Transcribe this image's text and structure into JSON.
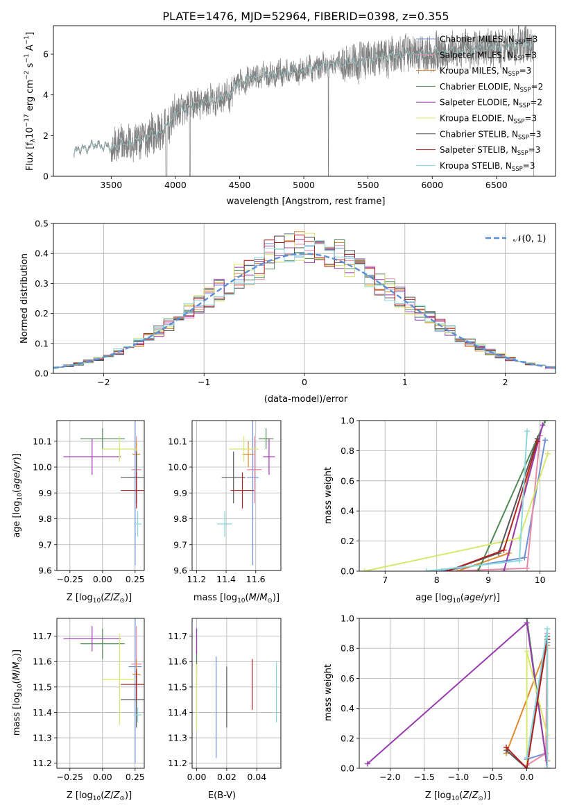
{
  "figure": {
    "title": "PLATE=1476, MJD=52964, FIBERID=0398, z=0.355"
  },
  "series": [
    {
      "name": "Chabrier MILES, N$_{SSP}$=3",
      "label": "Chabrier MILES, N",
      "sub": "SSP",
      "post": "=3",
      "color": "#6f8fd8"
    },
    {
      "name": "Salpeter MILES, N$_{SSP}$=3",
      "label": "Salpeter MILES, N",
      "sub": "SSP",
      "post": "=3",
      "color": "#e88aa8"
    },
    {
      "name": "Kroupa MILES, N$_{SSP}$=3",
      "label": "Kroupa MILES, N",
      "sub": "SSP",
      "post": "=3",
      "color": "#e08a2e"
    },
    {
      "name": "Chabrier ELODIE, N$_{SSP}$=2",
      "label": "Chabrier ELODIE, N",
      "sub": "SSP",
      "post": "=2",
      "color": "#4f8a55"
    },
    {
      "name": "Salpeter ELODIE, N$_{SSP}$=2",
      "label": "Salpeter ELODIE, N",
      "sub": "SSP",
      "post": "=2",
      "color": "#9a3ab0"
    },
    {
      "name": "Kroupa ELODIE, N$_{SSP}$=3",
      "label": "Kroupa ELODIE, N",
      "sub": "SSP",
      "post": "=3",
      "color": "#d7e86a"
    },
    {
      "name": "Chabrier STELIB, N$_{SSP}$=3",
      "label": "Chabrier STELIB, N",
      "sub": "SSP",
      "post": "=3",
      "color": "#555555"
    },
    {
      "name": "Salpeter STELIB, N$_{SSP}$=3",
      "label": "Salpeter STELIB, N",
      "sub": "SSP",
      "post": "=3",
      "color": "#b22222"
    },
    {
      "name": "Kroupa STELIB, N$_{SSP}$=3",
      "label": "Kroupa STELIB, N",
      "sub": "SSP",
      "post": "=3",
      "color": "#8ad8dc"
    }
  ],
  "chart_data": [
    {
      "id": "spectrum",
      "type": "line",
      "xlabel": "wavelength [Angstrom, rest frame]",
      "ylabel": "Flux [f_λ 10^-17 erg cm^-2 s^-1 A^-1]",
      "ylabel_parts": {
        "a": "Flux [f",
        "b": "λ",
        "c": "10",
        "d": "−17",
        "e": " erg cm",
        "f": "−2",
        "g": " s",
        "h": "−1",
        "i": " A",
        "j": "−1",
        "k": "]"
      },
      "xlim": [
        3050,
        6960
      ],
      "ylim": [
        0,
        7.4
      ],
      "xticks": [
        3500,
        4000,
        4500,
        5000,
        5500,
        6000,
        6500
      ],
      "yticks": [
        0,
        2,
        4,
        6
      ],
      "data_x_range": [
        3210,
        6800
      ],
      "data_color": "#808080",
      "model_anchors": {
        "x": [
          3210,
          3300,
          3400,
          3500,
          3600,
          3700,
          3800,
          3900,
          3950,
          4000,
          4100,
          4200,
          4300,
          4400,
          4500,
          4600,
          4800,
          5000,
          5200,
          5400,
          5600,
          5800,
          6000,
          6200,
          6400,
          6600,
          6800
        ],
        "y": [
          1.2,
          1.4,
          1.55,
          1.4,
          1.6,
          1.7,
          2.0,
          2.2,
          2.6,
          3.1,
          3.4,
          3.6,
          3.7,
          3.95,
          4.6,
          4.85,
          5.1,
          5.2,
          5.5,
          5.6,
          5.85,
          6.0,
          6.05,
          6.15,
          6.3,
          6.4,
          6.5
        ]
      }
    },
    {
      "id": "residuals",
      "type": "histogram",
      "xlabel": "(data-model)/error",
      "ylabel": "Normed distribution",
      "xlim": [
        -2.5,
        2.5
      ],
      "ylim": [
        0,
        0.5
      ],
      "xticks": [
        -2,
        -1,
        0,
        1,
        2
      ],
      "xtick_labels": [
        "−2",
        "−1",
        "0",
        "1",
        "2"
      ],
      "yticks": [
        0.0,
        0.1,
        0.2,
        0.3,
        0.4,
        0.5
      ],
      "ytick_labels": [
        "0.0",
        "0.1",
        "0.2",
        "0.3",
        "0.4",
        "0.5"
      ],
      "bins": 50,
      "reference_curve": {
        "name": "N(0,1)",
        "label": "𝒩(0, 1)",
        "color": "#5b8fd6"
      }
    },
    {
      "id": "age_vs_z",
      "type": "scatter",
      "xlabel": "Z [log10(Z/Z_sun)]",
      "ylabel": "age [log10(age/yr)]",
      "xlim": [
        -0.35,
        0.32
      ],
      "ylim": [
        9.6,
        10.18
      ],
      "xticks": [
        -0.25,
        0.0,
        0.25
      ],
      "xtick_labels": [
        "−0.25",
        "0.00",
        "0.25"
      ],
      "yticks": [
        9.6,
        9.7,
        9.8,
        9.9,
        10.0,
        10.1
      ],
      "ytick_labels": [
        "9.6",
        "9.7",
        "9.8",
        "9.9",
        "10.0",
        "10.1"
      ],
      "points": [
        {
          "s": 0,
          "x": 0.25,
          "y": 9.96,
          "xe": 0.05,
          "ye": 0.34
        },
        {
          "s": 1,
          "x": 0.26,
          "y": 9.99,
          "xe": 0.04,
          "ye": 0.13
        },
        {
          "s": 2,
          "x": 0.26,
          "y": 10.05,
          "xe": 0.03,
          "ye": 0.05
        },
        {
          "s": 3,
          "x": 0.0,
          "y": 10.11,
          "xe": 0.17,
          "ye": 0.04
        },
        {
          "s": 4,
          "x": -0.08,
          "y": 10.04,
          "xe": 0.22,
          "ye": 0.07
        },
        {
          "s": 5,
          "x": 0.13,
          "y": 10.07,
          "xe": 0.13,
          "ye": 0.05
        },
        {
          "s": 6,
          "x": 0.26,
          "y": 9.96,
          "xe": 0.12,
          "ye": 0.1
        },
        {
          "s": 7,
          "x": 0.26,
          "y": 9.91,
          "xe": 0.12,
          "ye": 0.07
        },
        {
          "s": 8,
          "x": 0.27,
          "y": 9.78,
          "xe": 0.03,
          "ye": 0.05
        }
      ]
    },
    {
      "id": "age_vs_mass",
      "type": "scatter",
      "xlabel": "mass [log10(M/M_sun)]",
      "ylabel": "",
      "xlim": [
        11.17,
        11.77
      ],
      "ylim": [
        9.6,
        10.18
      ],
      "xticks": [
        11.2,
        11.4,
        11.6
      ],
      "xtick_labels": [
        "11.2",
        "11.4",
        "11.6"
      ],
      "yticks": [
        9.6,
        9.7,
        9.8,
        9.9,
        10.0,
        10.1
      ],
      "ytick_labels": [
        "9.6",
        "9.7",
        "9.8",
        "9.9",
        "10.0",
        "10.1"
      ],
      "points": [
        {
          "s": 0,
          "x": 11.58,
          "y": 9.96,
          "xe": 0.04,
          "ye": 0.34
        },
        {
          "s": 1,
          "x": 11.59,
          "y": 9.99,
          "xe": 0.05,
          "ye": 0.13
        },
        {
          "s": 2,
          "x": 11.55,
          "y": 10.05,
          "xe": 0.04,
          "ye": 0.05
        },
        {
          "s": 3,
          "x": 11.67,
          "y": 10.11,
          "xe": 0.05,
          "ye": 0.04
        },
        {
          "s": 4,
          "x": 11.69,
          "y": 10.04,
          "xe": 0.04,
          "ye": 0.07
        },
        {
          "s": 5,
          "x": 11.52,
          "y": 10.07,
          "xe": 0.1,
          "ye": 0.05
        },
        {
          "s": 6,
          "x": 11.45,
          "y": 9.96,
          "xe": 0.08,
          "ye": 0.1
        },
        {
          "s": 7,
          "x": 11.51,
          "y": 9.91,
          "xe": 0.08,
          "ye": 0.07
        },
        {
          "s": 8,
          "x": 11.39,
          "y": 9.78,
          "xe": 0.05,
          "ye": 0.05
        }
      ]
    },
    {
      "id": "weight_vs_age",
      "type": "line",
      "xlabel": "age [log10(age/yr)]",
      "ylabel": "mass weight",
      "xlim": [
        6.5,
        10.3
      ],
      "ylim": [
        0,
        1
      ],
      "xticks": [
        7,
        8,
        9,
        10
      ],
      "xtick_labels": [
        "7",
        "8",
        "9",
        "10"
      ],
      "yticks": [
        0.0,
        0.2,
        0.4,
        0.6,
        0.8,
        1.0
      ],
      "ytick_labels": [
        "0.0",
        "0.2",
        "0.4",
        "0.6",
        "0.8",
        "1.0"
      ],
      "lines": [
        {
          "s": 0,
          "x": [
            8.1,
            9.7,
            10.1
          ],
          "y": [
            0.0,
            0.09,
            0.87
          ]
        },
        {
          "s": 1,
          "x": [
            8.3,
            9.75,
            10.0
          ],
          "y": [
            0.0,
            0.02,
            0.9
          ]
        },
        {
          "s": 2,
          "x": [
            8.4,
            9.4,
            9.95
          ],
          "y": [
            0.0,
            0.12,
            0.88
          ]
        },
        {
          "s": 3,
          "x": [
            8.8,
            10.1
          ],
          "y": [
            0.0,
            1.0
          ]
        },
        {
          "s": 4,
          "x": [
            9.3,
            10.05
          ],
          "y": [
            0.0,
            0.97
          ]
        },
        {
          "s": 5,
          "x": [
            6.6,
            9.6,
            10.15
          ],
          "y": [
            0.0,
            0.22,
            0.78
          ]
        },
        {
          "s": 6,
          "x": [
            8.2,
            9.2,
            9.95
          ],
          "y": [
            0.0,
            0.12,
            0.88
          ]
        },
        {
          "s": 7,
          "x": [
            8.2,
            9.3,
            9.95
          ],
          "y": [
            0.0,
            0.14,
            0.86
          ]
        },
        {
          "s": 8,
          "x": [
            7.8,
            9.6,
            9.75
          ],
          "y": [
            0.0,
            0.07,
            0.93
          ]
        }
      ]
    },
    {
      "id": "mass_vs_z",
      "type": "scatter",
      "xlabel": "Z [log10(Z/Z_sun)]",
      "ylabel": "mass [log10(M/M_sun)]",
      "xlim": [
        -0.35,
        0.32
      ],
      "ylim": [
        11.18,
        11.77
      ],
      "xticks": [
        -0.25,
        0.0,
        0.25
      ],
      "xtick_labels": [
        "−0.25",
        "0.00",
        "0.25"
      ],
      "yticks": [
        11.2,
        11.3,
        11.4,
        11.5,
        11.6,
        11.7
      ],
      "ytick_labels": [
        "11.2",
        "11.3",
        "11.4",
        "11.5",
        "11.6",
        "11.7"
      ],
      "points": [
        {
          "s": 0,
          "x": 0.25,
          "y": 11.58,
          "xe": 0.05,
          "ye": 0.38
        },
        {
          "s": 1,
          "x": 0.26,
          "y": 11.59,
          "xe": 0.04,
          "ye": 0.15
        },
        {
          "s": 2,
          "x": 0.26,
          "y": 11.55,
          "xe": 0.03,
          "ye": 0.06
        },
        {
          "s": 3,
          "x": 0.0,
          "y": 11.67,
          "xe": 0.17,
          "ye": 0.06
        },
        {
          "s": 4,
          "x": -0.08,
          "y": 11.69,
          "xe": 0.22,
          "ye": 0.05
        },
        {
          "s": 5,
          "x": 0.13,
          "y": 11.53,
          "xe": 0.13,
          "ye": 0.18
        },
        {
          "s": 6,
          "x": 0.26,
          "y": 11.45,
          "xe": 0.12,
          "ye": 0.11
        },
        {
          "s": 7,
          "x": 0.26,
          "y": 11.51,
          "xe": 0.12,
          "ye": 0.06
        },
        {
          "s": 8,
          "x": 0.27,
          "y": 11.39,
          "xe": 0.03,
          "ye": 0.03
        }
      ]
    },
    {
      "id": "mass_vs_ebv",
      "type": "scatter",
      "xlabel": "E(B-V)",
      "ylabel": "",
      "xlim": [
        -0.003,
        0.056
      ],
      "ylim": [
        11.18,
        11.77
      ],
      "xticks": [
        0.0,
        0.02,
        0.04
      ],
      "xtick_labels": [
        "0.00",
        "0.02",
        "0.04"
      ],
      "yticks": [
        11.2,
        11.3,
        11.4,
        11.5,
        11.6,
        11.7
      ],
      "ytick_labels": [
        "11.2",
        "11.3",
        "11.4",
        "11.5",
        "11.6",
        "11.7"
      ],
      "points": [
        {
          "s": 0,
          "x": 0.013,
          "y": 11.42,
          "xe": 0,
          "ye": 0.2
        },
        {
          "s": 1,
          "x": 0.0,
          "y": 11.6,
          "xe": 0,
          "ye": 0.05
        },
        {
          "s": 2,
          "x": 0.0,
          "y": 11.55,
          "xe": 0,
          "ye": 0.05
        },
        {
          "s": 3,
          "x": 0.0,
          "y": 11.66,
          "xe": 0,
          "ye": 0.07
        },
        {
          "s": 4,
          "x": 0.0,
          "y": 11.68,
          "xe": 0,
          "ye": 0.05
        },
        {
          "s": 5,
          "x": 0.0,
          "y": 11.46,
          "xe": 0,
          "ye": 0.13
        },
        {
          "s": 6,
          "x": 0.02,
          "y": 11.46,
          "xe": 0,
          "ye": 0.12
        },
        {
          "s": 7,
          "x": 0.037,
          "y": 11.51,
          "xe": 0,
          "ye": 0.1
        },
        {
          "s": 8,
          "x": 0.053,
          "y": 11.48,
          "xe": 0,
          "ye": 0.12
        }
      ]
    },
    {
      "id": "weight_vs_z",
      "type": "line",
      "xlabel": "Z [log10(Z/Z_sun)]",
      "ylabel": "mass weight",
      "xlim": [
        -2.45,
        0.42
      ],
      "ylim": [
        0,
        1
      ],
      "xticks": [
        -2.0,
        -1.5,
        -1.0,
        -0.5,
        0.0
      ],
      "xtick_labels": [
        "−2.0",
        "−1.5",
        "−1.0",
        "−0.5",
        "0.0"
      ],
      "yticks": [
        0.0,
        0.2,
        0.4,
        0.6,
        0.8,
        1.0
      ],
      "ytick_labels": [
        "0.0",
        "0.2",
        "0.4",
        "0.6",
        "0.8",
        "1.0"
      ],
      "lines": [
        {
          "s": 0,
          "x": [
            0.0,
            0.28,
            0.3
          ],
          "y": [
            0.06,
            0.1,
            0.84
          ]
        },
        {
          "s": 1,
          "x": [
            0.0,
            0.28,
            0.3
          ],
          "y": [
            0.02,
            0.1,
            0.9
          ]
        },
        {
          "s": 2,
          "x": [
            -0.3,
            0.3,
            0.3
          ],
          "y": [
            0.1,
            0.82,
            0.05
          ]
        },
        {
          "s": 3,
          "x": [
            0.0,
            0.3
          ],
          "y": [
            1.0,
            0.0
          ]
        },
        {
          "s": 4,
          "x": [
            -2.33,
            0.0,
            0.3
          ],
          "y": [
            0.03,
            0.97,
            0.0
          ]
        },
        {
          "s": 5,
          "x": [
            0.0,
            0.0,
            0.3
          ],
          "y": [
            0.0,
            0.78,
            0.22
          ]
        },
        {
          "s": 6,
          "x": [
            -0.3,
            0.0,
            0.3
          ],
          "y": [
            0.12,
            0.0,
            0.88
          ]
        },
        {
          "s": 7,
          "x": [
            -0.3,
            0.0,
            0.3
          ],
          "y": [
            0.14,
            0.0,
            0.86
          ]
        },
        {
          "s": 8,
          "x": [
            0.0,
            0.3,
            0.3
          ],
          "y": [
            0.07,
            0.93,
            0.0
          ]
        }
      ]
    }
  ]
}
